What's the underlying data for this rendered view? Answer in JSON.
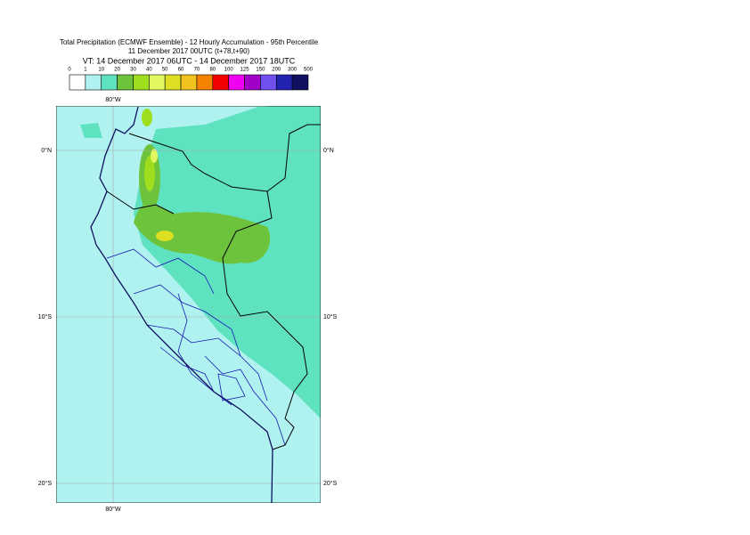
{
  "title": {
    "lines": [
      "Total Precipitation (ECMWF Ensemble) - 12 Hourly Accumulation - 95th Percentile",
      "11 December 2017 00UTC (t+78,t+90)",
      "VT: 14 December 2017 06UTC - 14 December 2017 18UTC"
    ]
  },
  "legend": {
    "labels": [
      0,
      1,
      10,
      20,
      30,
      40,
      50,
      60,
      70,
      80,
      100,
      125,
      150,
      200,
      300,
      500
    ],
    "colors": [
      "#ffffff",
      "#aff2f0",
      "#5fe2c0",
      "#6ec33c",
      "#9fde1c",
      "#e2f85e",
      "#dede22",
      "#f2c21e",
      "#f28200",
      "#f20000",
      "#f000f0",
      "#a000c8",
      "#7050f0",
      "#2222b0",
      "#101060"
    ]
  },
  "map": {
    "lon_labels": [
      "80°W"
    ],
    "lat_labels": [
      "0°N",
      "10°S",
      "20°S"
    ]
  }
}
